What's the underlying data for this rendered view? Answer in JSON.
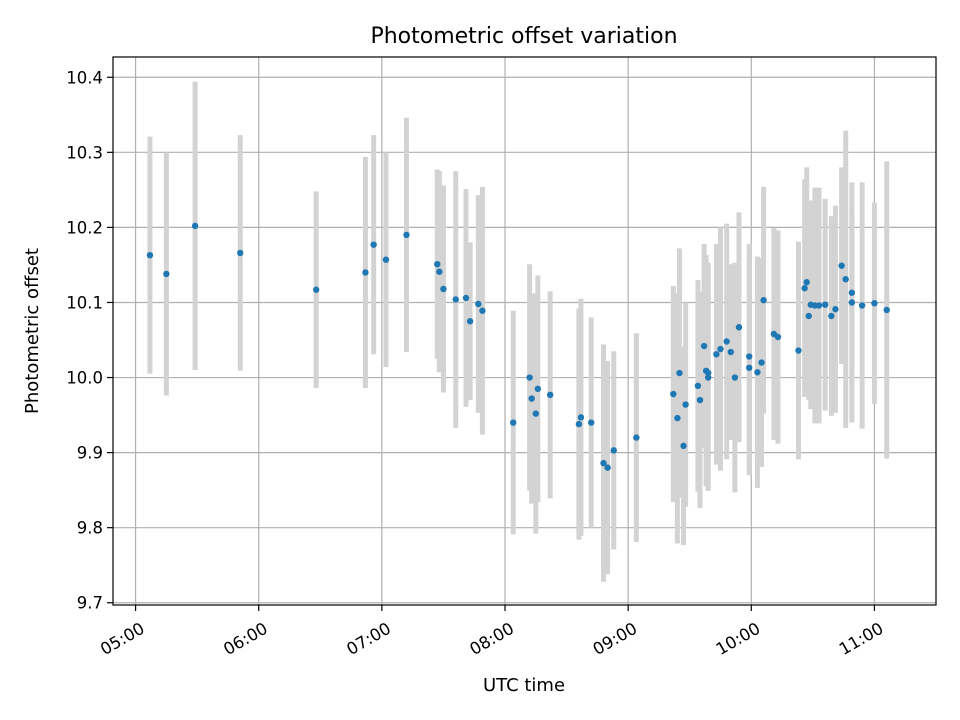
{
  "chart_data": {
    "type": "scatter",
    "title": "Photometric offset variation",
    "xlabel": "UTC time",
    "ylabel": "Photometric offset",
    "x_ticks": [
      "05:00",
      "06:00",
      "07:00",
      "08:00",
      "09:00",
      "10:00",
      "11:00"
    ],
    "y_ticks": [
      "9.7",
      "9.8",
      "9.9",
      "10.0",
      "10.1",
      "10.2",
      "10.3",
      "10.4"
    ],
    "xlim": [
      "04:49",
      "11:30"
    ],
    "ylim": [
      9.697,
      10.427
    ],
    "grid": true,
    "marker_color": "#1f77b4",
    "errorbar_color": "#d3d3d3",
    "series": [
      {
        "x": [
          "05:07",
          "05:15",
          "05:29",
          "05:51",
          "06:28",
          "06:52",
          "06:56",
          "07:02",
          "07:12",
          "07:27",
          "07:28",
          "07:30",
          "07:36",
          "07:41",
          "07:43",
          "07:47",
          "07:49",
          "08:04",
          "08:12",
          "08:13",
          "08:15",
          "08:16",
          "08:22",
          "08:36",
          "08:37",
          "08:42",
          "08:48",
          "08:50",
          "08:53",
          "09:04",
          "09:22",
          "09:24",
          "09:25",
          "09:27",
          "09:28",
          "09:34",
          "09:35",
          "09:37",
          "09:38",
          "09:39",
          "09:39",
          "09:43",
          "09:45",
          "09:48",
          "09:50",
          "09:52",
          "09:54",
          "09:59",
          "09:59",
          "10:03",
          "10:05",
          "10:06",
          "10:11",
          "10:13",
          "10:23",
          "10:26",
          "10:27",
          "10:28",
          "10:29",
          "10:31",
          "10:33",
          "10:36",
          "10:39",
          "10:41",
          "10:44",
          "10:46",
          "10:49",
          "10:49",
          "10:54",
          "11:00",
          "11:06"
        ],
        "y": [
          10.163,
          10.138,
          10.202,
          10.166,
          10.117,
          10.14,
          10.177,
          10.157,
          10.19,
          10.151,
          10.141,
          10.118,
          10.104,
          10.106,
          10.075,
          10.098,
          10.089,
          9.94,
          10.0,
          9.972,
          9.952,
          9.985,
          9.977,
          9.938,
          9.947,
          9.94,
          9.886,
          9.88,
          9.903,
          9.92,
          9.978,
          9.946,
          10.006,
          9.909,
          9.964,
          9.989,
          9.97,
          10.042,
          10.009,
          10.0,
          10.006,
          10.031,
          10.038,
          10.048,
          10.034,
          10.0,
          10.067,
          10.013,
          10.028,
          10.007,
          10.02,
          10.103,
          10.058,
          10.054,
          10.036,
          10.119,
          10.127,
          10.082,
          10.097,
          10.096,
          10.096,
          10.097,
          10.082,
          10.091,
          10.149,
          10.131,
          10.1,
          10.113,
          10.096,
          10.099,
          10.09
        ],
        "yerr": [
          0.158,
          0.162,
          0.192,
          0.157,
          0.131,
          0.154,
          0.146,
          0.143,
          0.156,
          0.126,
          0.134,
          0.138,
          0.171,
          0.145,
          0.105,
          0.145,
          0.165,
          0.149,
          0.151,
          0.14,
          0.16,
          0.151,
          0.138,
          0.154,
          0.158,
          0.14,
          0.158,
          0.142,
          0.132,
          0.139,
          0.144,
          0.167,
          0.166,
          0.132,
          0.136,
          0.141,
          0.144,
          0.136,
          0.154,
          0.151,
          0.147,
          0.147,
          0.162,
          0.157,
          0.117,
          0.153,
          0.153,
          0.143,
          0.15,
          0.154,
          0.139,
          0.151,
          0.141,
          0.142,
          0.145,
          0.145,
          0.153,
          0.112,
          0.139,
          0.157,
          0.157,
          0.141,
          0.133,
          0.138,
          0.131,
          0.198,
          0.16,
          0.107,
          0.164,
          0.134,
          0.198
        ]
      }
    ]
  }
}
